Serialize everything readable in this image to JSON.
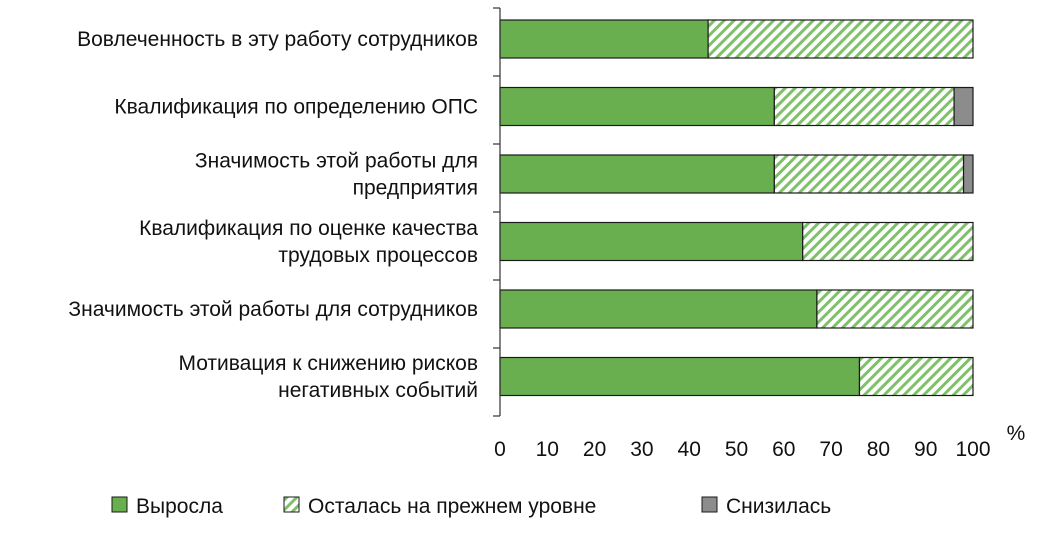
{
  "chart_data": {
    "type": "bar",
    "orientation": "horizontal",
    "stacked": true,
    "categories": [
      [
        "Вовлеченность в эту работу сотрудников"
      ],
      [
        "Квалификация по определению ОПС"
      ],
      [
        "Значимость этой работы для",
        "предприятия"
      ],
      [
        "Квалификация по оценке качества",
        "трудовых процессов"
      ],
      [
        "Значимость этой работы для сотрудников"
      ],
      [
        "Мотивация к снижению рисков",
        "негативных событий"
      ]
    ],
    "series": [
      {
        "name": "Выросла",
        "values": [
          44,
          58,
          58,
          64,
          67,
          76
        ],
        "color": "#6aaf4f",
        "pattern": "solid"
      },
      {
        "name": "Осталась на прежнем уровне",
        "values": [
          56,
          38,
          40,
          36,
          33,
          24
        ],
        "color": "#7fc06a",
        "pattern": "hatch"
      },
      {
        "name": "Снизилась",
        "values": [
          0,
          4,
          2,
          0,
          0,
          0
        ],
        "color": "#8c8c8c",
        "pattern": "solid"
      }
    ],
    "xlim": [
      0,
      100
    ],
    "xticks": [
      "0",
      "10",
      "20",
      "30",
      "40",
      "50",
      "60",
      "70",
      "80",
      "90",
      "100"
    ],
    "x_unit": "%",
    "title": "",
    "xlabel": "",
    "ylabel": "",
    "grid": false,
    "legend_position": "bottom"
  }
}
